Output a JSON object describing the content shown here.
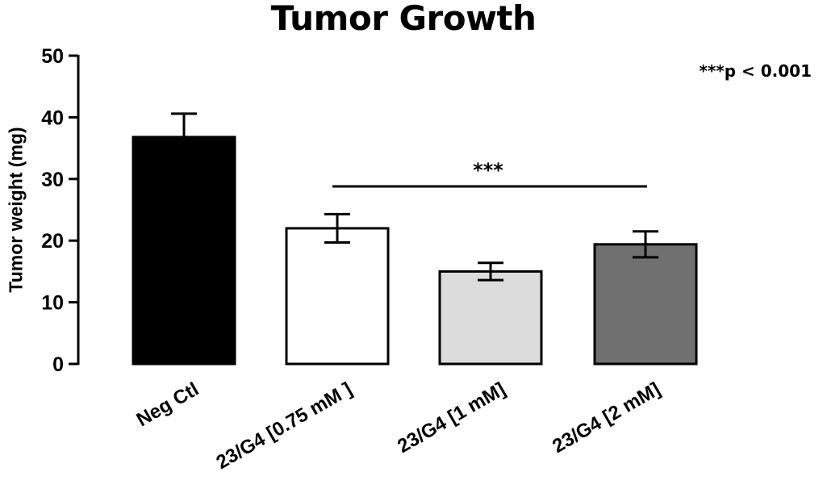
{
  "chart_data": {
    "type": "bar",
    "title": "Tumor Growth",
    "ylabel": "Tumor weight (mg)",
    "xlabel": "",
    "categories": [
      "Neg Ctl",
      "23/G4 [0.75 mM ]",
      "23/G4 [1 mM]",
      "23/G4 [2 mM]"
    ],
    "values": [
      36.8,
      22.0,
      15.0,
      19.4
    ],
    "errors": [
      3.8,
      2.3,
      1.4,
      2.1
    ],
    "bar_colors": [
      "#000000",
      "#ffffff",
      "#dcdcdc",
      "#707070"
    ],
    "ylim": [
      0,
      50
    ],
    "yticks": [
      "0",
      "10",
      "20",
      "30",
      "40",
      "50"
    ],
    "grid": false,
    "significance": {
      "label": "***",
      "from_category": "23/G4 [0.75 mM ]",
      "to_category": "23/G4 [2 mM]",
      "level": 28.8
    },
    "annotation": "***p < 0.001"
  }
}
